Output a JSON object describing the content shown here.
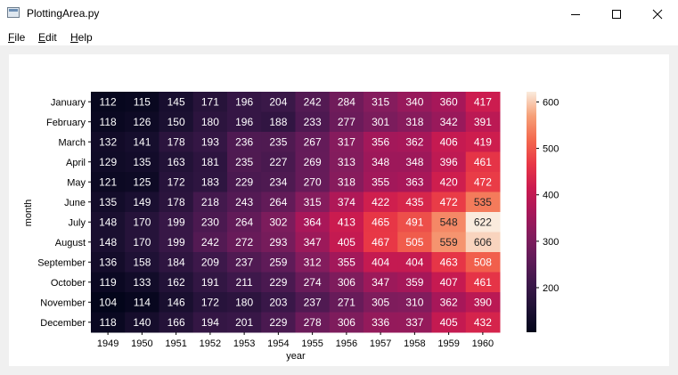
{
  "window": {
    "title": "PlottingArea.py"
  },
  "menu": [
    {
      "pre": "",
      "u": "F",
      "post": "ile"
    },
    {
      "pre": "",
      "u": "E",
      "post": "dit"
    },
    {
      "pre": "",
      "u": "H",
      "post": "elp"
    }
  ],
  "chart_data": {
    "type": "heatmap",
    "xlabel": "year",
    "ylabel": "month",
    "x": [
      "1949",
      "1950",
      "1951",
      "1952",
      "1953",
      "1954",
      "1955",
      "1956",
      "1957",
      "1958",
      "1959",
      "1960"
    ],
    "y": [
      "January",
      "February",
      "March",
      "April",
      "May",
      "June",
      "July",
      "August",
      "September",
      "October",
      "November",
      "December"
    ],
    "values": [
      [
        112,
        115,
        145,
        171,
        196,
        204,
        242,
        284,
        315,
        340,
        360,
        417
      ],
      [
        118,
        126,
        150,
        180,
        196,
        188,
        233,
        277,
        301,
        318,
        342,
        391
      ],
      [
        132,
        141,
        178,
        193,
        236,
        235,
        267,
        317,
        356,
        362,
        406,
        419
      ],
      [
        129,
        135,
        163,
        181,
        235,
        227,
        269,
        313,
        348,
        348,
        396,
        461
      ],
      [
        121,
        125,
        172,
        183,
        229,
        234,
        270,
        318,
        355,
        363,
        420,
        472
      ],
      [
        135,
        149,
        178,
        218,
        243,
        264,
        315,
        374,
        422,
        435,
        472,
        535
      ],
      [
        148,
        170,
        199,
        230,
        264,
        302,
        364,
        413,
        465,
        491,
        548,
        622
      ],
      [
        148,
        170,
        199,
        242,
        272,
        293,
        347,
        405,
        467,
        505,
        559,
        606
      ],
      [
        136,
        158,
        184,
        209,
        237,
        259,
        312,
        355,
        404,
        404,
        463,
        508
      ],
      [
        119,
        133,
        162,
        191,
        211,
        229,
        274,
        306,
        347,
        359,
        407,
        461
      ],
      [
        104,
        114,
        146,
        172,
        180,
        203,
        237,
        271,
        305,
        310,
        362,
        390
      ],
      [
        118,
        140,
        166,
        194,
        201,
        229,
        278,
        306,
        336,
        337,
        405,
        432
      ]
    ],
    "colorbar": {
      "min": 104,
      "max": 622,
      "ticks": [
        200,
        300,
        400,
        500,
        600
      ]
    },
    "colormap": "rocket",
    "annotated": true
  }
}
